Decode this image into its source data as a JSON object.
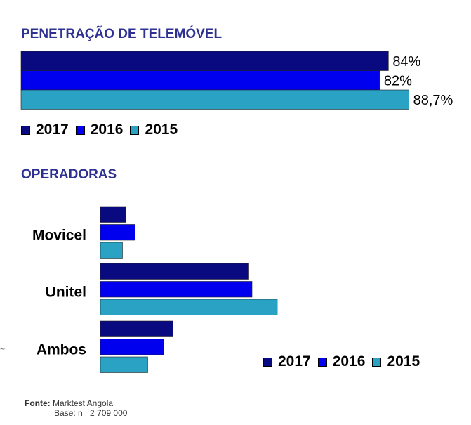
{
  "colors": {
    "y2017": "#0a0a80",
    "y2016": "#0000ee",
    "y2015": "#29a2c3",
    "title": "#2e3192"
  },
  "chart_data": [
    {
      "type": "bar",
      "orientation": "horizontal",
      "title": "PENETRAÇÃO DE TELEMÓVEL",
      "series": [
        {
          "name": "2017",
          "values": [
            84
          ],
          "label": "84%"
        },
        {
          "name": "2016",
          "values": [
            82
          ],
          "label": "82%"
        },
        {
          "name": "2015",
          "values": [
            88.7
          ],
          "label": "88,7%"
        }
      ],
      "xlim": [
        0,
        100
      ],
      "legend": [
        "2017",
        "2016",
        "2015"
      ]
    },
    {
      "type": "bar",
      "orientation": "horizontal",
      "title": "OPERADORAS",
      "categories": [
        "Movicel",
        "Unitel",
        "Ambos"
      ],
      "series": [
        {
          "name": "2017",
          "values": [
            8,
            47,
            23
          ]
        },
        {
          "name": "2016",
          "values": [
            11,
            48,
            20
          ]
        },
        {
          "name": "2015",
          "values": [
            7,
            56,
            15
          ]
        }
      ],
      "xlim": [
        0,
        100
      ],
      "legend": [
        "2017",
        "2016",
        "2015"
      ]
    }
  ],
  "footer": {
    "source_label": "Fonte:",
    "source_value": "Marktest Angola",
    "base": "Base: n= 2 709 000"
  },
  "stray_mark": "~"
}
